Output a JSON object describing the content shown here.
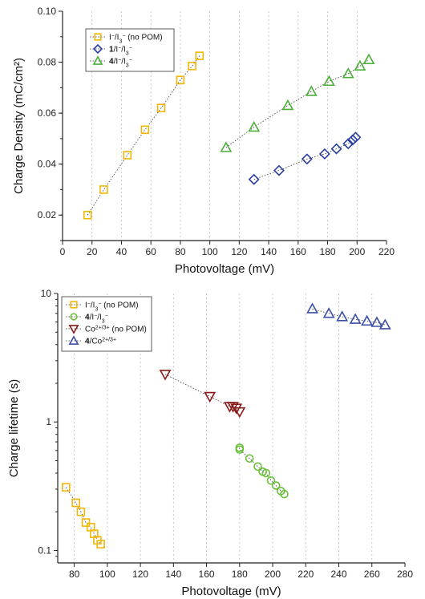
{
  "chart_data": [
    {
      "type": "scatter",
      "xlabel": "Photovoltage (mV)",
      "ylabel": "Charge Density (mC/cm²)",
      "xlim": [
        0,
        220
      ],
      "ylim": [
        0.01,
        0.1
      ],
      "yscale": "linear",
      "xticks": [
        0,
        20,
        40,
        60,
        80,
        100,
        120,
        140,
        160,
        180,
        200,
        220
      ],
      "yticks": [
        0.02,
        0.04,
        0.06,
        0.08,
        0.1
      ],
      "ytick_labels": [
        "0.02",
        "0.04",
        "0.06",
        "0.08",
        "0.10"
      ],
      "grid": "vertical dotted",
      "legend_position": "top-left",
      "series": [
        {
          "label_main": "I",
          "label_sup1": "−",
          "label_mid": "/I",
          "label_sub": "3",
          "label_sup2": "−",
          "label_tail": " (no POM)",
          "marker": "square",
          "color": "#f2b705",
          "x": [
            17,
            28,
            44,
            56,
            67,
            80,
            88,
            93
          ],
          "y": [
            0.02,
            0.03,
            0.0435,
            0.0535,
            0.062,
            0.073,
            0.0785,
            0.0825
          ]
        },
        {
          "label_bold": "1",
          "label_main": "/I",
          "label_sup1": "−",
          "label_mid": "/I",
          "label_sub": "3",
          "label_sup2": "−",
          "label_tail": "",
          "marker": "diamond",
          "color": "#2a3f9f",
          "x": [
            130,
            147,
            166,
            178,
            186,
            194,
            197,
            199
          ],
          "y": [
            0.034,
            0.0375,
            0.042,
            0.044,
            0.046,
            0.048,
            0.0495,
            0.0505
          ]
        },
        {
          "label_bold": "4",
          "label_main": "/I",
          "label_sup1": "−",
          "label_mid": "/I",
          "label_sub": "3",
          "label_sup2": "−",
          "label_tail": "",
          "marker": "triangle",
          "color": "#4caf3a",
          "x": [
            111,
            130,
            153,
            169,
            181,
            194,
            202,
            208
          ],
          "y": [
            0.0465,
            0.0545,
            0.063,
            0.0685,
            0.0725,
            0.0755,
            0.0785,
            0.081
          ]
        }
      ]
    },
    {
      "type": "scatter",
      "xlabel": "Photovoltage (mV)",
      "ylabel": "Charge lifetime (s)",
      "xlim": [
        70,
        280
      ],
      "ylim": [
        0.08,
        10
      ],
      "yscale": "log",
      "xticks": [
        80,
        100,
        120,
        140,
        160,
        180,
        200,
        220,
        240,
        260,
        280
      ],
      "yticks": [
        0.1,
        1,
        10
      ],
      "ytick_labels": [
        "0.1",
        "1",
        "10"
      ],
      "grid": "vertical dotted",
      "legend_position": "top-left",
      "series": [
        {
          "label_main": "I",
          "label_sup1": "−",
          "label_mid": "/I",
          "label_sub": "3",
          "label_sup2": "−",
          "label_tail": " (no POM)",
          "marker": "square",
          "color": "#f2b705",
          "x": [
            75,
            81,
            84,
            87,
            90,
            92,
            94,
            96
          ],
          "y": [
            0.31,
            0.235,
            0.2,
            0.165,
            0.152,
            0.135,
            0.12,
            0.112
          ]
        },
        {
          "label_bold": "4",
          "label_main": "/I",
          "label_sup1": "−",
          "label_mid": "/I",
          "label_sub": "3",
          "label_sup2": "−",
          "label_tail": "",
          "marker": "circle",
          "color": "#6bbf3b",
          "x": [
            180,
            180,
            186,
            191,
            194,
            196,
            199,
            202,
            205,
            207
          ],
          "y": [
            0.63,
            0.61,
            0.52,
            0.45,
            0.41,
            0.4,
            0.35,
            0.32,
            0.29,
            0.275
          ]
        },
        {
          "label_main": "Co",
          "label_sup1": "2+/3+",
          "label_mid": "",
          "label_sub": "",
          "label_sup2": "",
          "label_tail": " (no POM)",
          "marker": "triangle-down",
          "color": "#8b1a1a",
          "x": [
            135,
            162,
            174,
            176,
            178,
            180
          ],
          "y": [
            2.35,
            1.58,
            1.32,
            1.32,
            1.28,
            1.2
          ]
        },
        {
          "label_bold": "4",
          "label_main": "/Co",
          "label_sup1": "2+/3+",
          "label_mid": "",
          "label_sub": "",
          "label_sup2": "",
          "label_tail": "",
          "marker": "triangle",
          "color": "#3b4fa8",
          "x": [
            224,
            234,
            242,
            250,
            257,
            263,
            268
          ],
          "y": [
            7.6,
            7.0,
            6.6,
            6.3,
            6.1,
            5.95,
            5.7
          ]
        }
      ]
    }
  ]
}
